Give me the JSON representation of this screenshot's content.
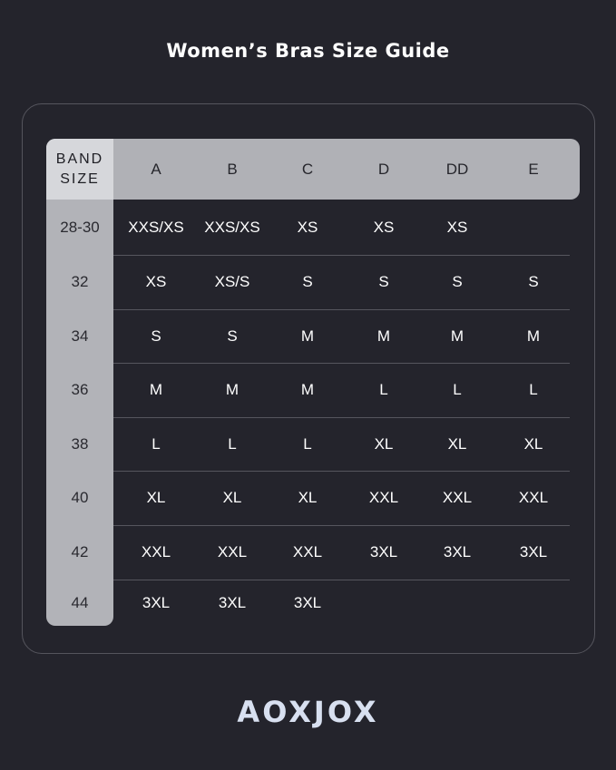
{
  "title": "Women’s Bras Size Guide",
  "header": {
    "band_label_1": "BAND",
    "band_label_2": "SIZE",
    "cups": [
      "A",
      "B",
      "C",
      "D",
      "DD",
      "E"
    ]
  },
  "rows": [
    {
      "band": "28-30",
      "sizes": [
        "XXS/XS",
        "XXS/XS",
        "XS",
        "XS",
        "XS",
        ""
      ]
    },
    {
      "band": "32",
      "sizes": [
        "XS",
        "XS/S",
        "S",
        "S",
        "S",
        "S"
      ]
    },
    {
      "band": "34",
      "sizes": [
        "S",
        "S",
        "M",
        "M",
        "M",
        "M"
      ]
    },
    {
      "band": "36",
      "sizes": [
        "M",
        "M",
        "M",
        "L",
        "L",
        "L"
      ]
    },
    {
      "band": "38",
      "sizes": [
        "L",
        "L",
        "L",
        "XL",
        "XL",
        "XL"
      ]
    },
    {
      "band": "40",
      "sizes": [
        "XL",
        "XL",
        "XL",
        "XXL",
        "XXL",
        "XXL"
      ]
    },
    {
      "band": "42",
      "sizes": [
        "XXL",
        "XXL",
        "XXL",
        "3XL",
        "3XL",
        "3XL"
      ]
    },
    {
      "band": "44",
      "sizes": [
        "3XL",
        "3XL",
        "3XL",
        "",
        "",
        ""
      ]
    }
  ],
  "brand": "AOXJOX",
  "colors": {
    "background": "#24242c",
    "header": "#b0b1b6",
    "corner": "#d6d7db",
    "logo": "#d8e0f0"
  }
}
